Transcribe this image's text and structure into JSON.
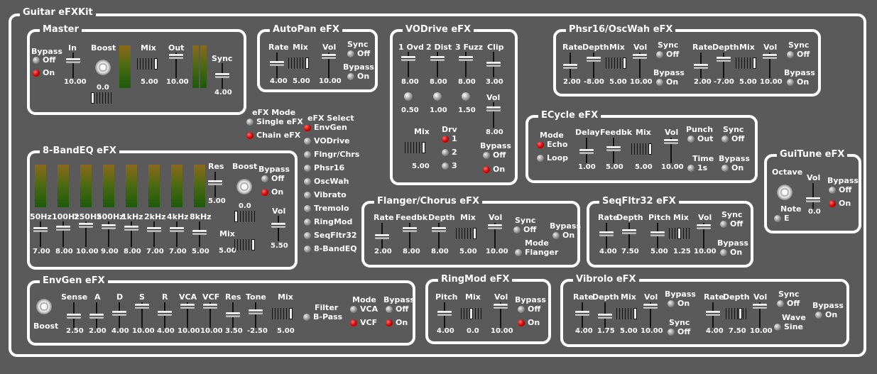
{
  "app": {
    "title": "Guitar eFXKit"
  },
  "master": {
    "title": "Master",
    "bypass": "Bypass",
    "off": "Off",
    "on": "On",
    "in": "In",
    "in_val": "10.00",
    "boost": "Boost",
    "boost_val": "0.0",
    "mix": "Mix",
    "mix_val": "5.00",
    "out": "Out",
    "out_val": "10.00",
    "sync": "Sync",
    "sync_val": "4.00",
    "in_level": 0.5,
    "out_level": 0.7
  },
  "autopan": {
    "title": "AutoPan eFX",
    "rate": "Rate",
    "rate_val": "4.00",
    "mix": "Mix",
    "mix_val": "5.00",
    "vol": "Vol",
    "vol_val": "10.00",
    "sync": "Sync",
    "sync_off": "Off",
    "bypass": "Bypass",
    "bypass_on": "On"
  },
  "vodrive": {
    "title": "VODrive eFX",
    "ovd": "1 Ovd",
    "ovd_val": "8.00",
    "ovd_knob": "0.50",
    "dist": "2 Dist",
    "dist_val": "8.00",
    "dist_knob": "1.00",
    "fuzz": "3 Fuzz",
    "fuzz_val": "8.00",
    "fuzz_knob": "1.50",
    "clip": "Clip",
    "clip_val": "3.00",
    "vol": "Vol",
    "vol_val": "8.00",
    "mix": "Mix",
    "mix_val": "5.00",
    "drv": "Drv",
    "drv1": "1",
    "drv2": "2",
    "drv3": "3",
    "bypass": "Bypass",
    "off": "Off",
    "on": "On"
  },
  "phsr": {
    "title": "Phsr16/OscWah eFX",
    "rate": "Rate",
    "rate_val": "2.00",
    "depth": "Depth",
    "depth_val": "-8.00",
    "mix": "Mix",
    "mix_val": "5.00",
    "vol": "Vol",
    "vol_val": "10.00",
    "sync": "Sync",
    "sync_off": "Off",
    "bypass": "Bypass",
    "bypass_on": "On",
    "rate2": "Rate",
    "rate2_val": "2.00",
    "depth2": "Depth",
    "depth2_val": "-7.00",
    "mix2": "Mix",
    "mix2_val": "5.00",
    "vol2": "Vol",
    "vol2_val": "10.00",
    "sync2": "Sync",
    "sync2_off": "Off",
    "bypass2": "Bypass",
    "bypass2_on": "On"
  },
  "efxmode": {
    "label": "eFX Mode",
    "single": "Single eFX",
    "chain": "Chain eFX"
  },
  "efxselect": {
    "label": "eFX Select",
    "items": [
      "EnvGen",
      "VODrive",
      "Flngr/Chrs",
      "Phsr16",
      "OscWah",
      "Vibrato",
      "Tremolo",
      "RingMod",
      "SeqFltr32",
      "8-BandEQ"
    ]
  },
  "ecycle": {
    "title": "ECycle eFX",
    "mode": "Mode",
    "echo": "Echo",
    "loop": "Loop",
    "delay": "Delay",
    "delay_val": "1.00",
    "feedbk": "Feedbk",
    "feedbk_val": "5.00",
    "mix": "Mix",
    "mix_val": "5.00",
    "vol": "Vol",
    "vol_val": "10.00",
    "punch": "Punch",
    "punch_out": "Out",
    "time": "Time",
    "time_val": "1s",
    "sync": "Sync",
    "sync_off": "Off",
    "bypass": "Bypass",
    "bypass_on": "On"
  },
  "eq": {
    "title": "8-BandEQ eFX",
    "bands": [
      {
        "label": "50Hz",
        "val": "7.00"
      },
      {
        "label": "100Hz",
        "val": "8.00"
      },
      {
        "label": "250Hz",
        "val": "10.00"
      },
      {
        "label": "500Hz",
        "val": "9.00"
      },
      {
        "label": "1kHz",
        "val": "8.00"
      },
      {
        "label": "2kHz",
        "val": "7.00"
      },
      {
        "label": "4kHz",
        "val": "7.00"
      },
      {
        "label": "8kHz",
        "val": "5.00"
      }
    ],
    "res": "Res",
    "res_val": "5.00",
    "boost": "Boost",
    "boost_val": "0.0",
    "bypass": "Bypass",
    "off": "Off",
    "on": "On",
    "vol": "Vol",
    "vol_val": "5.50",
    "mix": "Mix",
    "mix_val": "5.00"
  },
  "flanger": {
    "title": "Flanger/Chorus eFX",
    "rate": "Rate",
    "rate_val": "2.00",
    "feedbk": "Feedbk",
    "feedbk_val": "8.00",
    "depth": "Depth",
    "depth_val": "8.00",
    "mix": "Mix",
    "mix_val": "5.00",
    "vol": "Vol",
    "vol_val": "10.00",
    "sync": "Sync",
    "sync_off": "Off",
    "mode": "Mode",
    "mode_val": "Flanger",
    "bypass": "Bypass",
    "bypass_on": "On"
  },
  "seqfltr": {
    "title": "SeqFltr32 eFX",
    "rate": "Rate",
    "rate_val": "4.00",
    "depth": "Depth",
    "depth_val": "7.50",
    "pitch": "Pitch",
    "pitch_val": "5.00",
    "mix": "Mix",
    "mix_val": "1.25",
    "vol": "Vol",
    "vol_val": "10.00",
    "sync": "Sync",
    "sync_off": "Off",
    "bypass": "Bypass",
    "bypass_on": "On"
  },
  "guitune": {
    "title": "GuiTune eFX",
    "octave": "Octave",
    "vol": "Vol",
    "vol_val": "0.0",
    "bypass": "Bypass",
    "off": "Off",
    "on": "On",
    "note": "Note",
    "note_val": "E"
  },
  "envgen": {
    "title": "EnvGen eFX",
    "boost": "Boost",
    "sense": "Sense",
    "sense_val": "2.50",
    "a": "A",
    "a_val": "2.00",
    "d": "D",
    "d_val": "4.00",
    "s": "S",
    "s_val": "10.00",
    "r": "R",
    "r_val": "4.00",
    "vca": "VCA",
    "vca_val": "10.00",
    "vcf": "VCF",
    "vcf_val": "10.00",
    "res": "Res",
    "res_val": "3.50",
    "tone": "Tone",
    "tone_val": "-2.50",
    "mix": "Mix",
    "mix_val": "5.00",
    "filter": "Filter",
    "filter_val": "B-Pass",
    "mode": "Mode",
    "mode_vca": "VCA",
    "mode_vcf": "VCF",
    "bypass": "Bypass",
    "off": "Off",
    "on": "On"
  },
  "ringmod": {
    "title": "RingMod eFX",
    "pitch": "Pitch",
    "pitch_val": "4.00",
    "mix": "Mix",
    "mix_val": "0.0",
    "vol": "Vol",
    "vol_val": "10.00",
    "bypass": "Bypass",
    "off": "Off",
    "on": "On"
  },
  "vibrolo": {
    "title": "Vibrolo eFX",
    "rate": "Rate",
    "rate_val": "4.00",
    "depth": "Depth",
    "depth_val": "1.75",
    "mix": "Mix",
    "mix_val": "5.00",
    "vol": "Vol",
    "vol_val": "10.00",
    "bypass": "Bypass",
    "bypass_on": "On",
    "sync": "Sync",
    "sync_off": "Off",
    "rate2": "Rate",
    "rate2_val": "4.00",
    "depth2": "Depth",
    "depth2_val": "7.50",
    "vol2": "Vol",
    "vol2_val": "10.00",
    "sync2": "Sync",
    "sync2_off": "Off",
    "wave": "Wave",
    "wave_val": "Sine",
    "bypass2": "Bypass",
    "bypass2_on": "On"
  }
}
